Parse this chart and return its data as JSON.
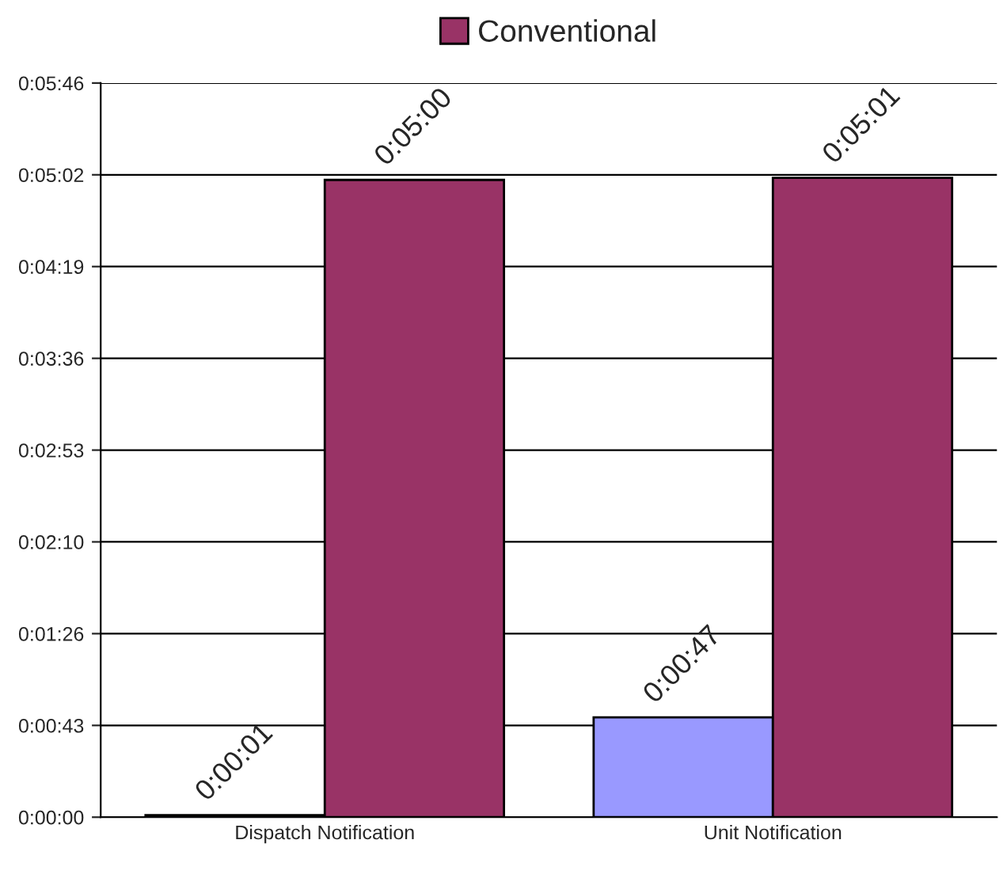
{
  "chart_data": {
    "type": "bar",
    "categories": [
      "Dispatch Notification",
      "Unit Notification"
    ],
    "series": [
      {
        "color": "#9999ff",
        "values": [
          1,
          47
        ],
        "value_labels": [
          "0:00:01",
          "0:00:47"
        ]
      },
      {
        "name": "Conventional",
        "color": "#993366",
        "values": [
          300,
          301
        ],
        "value_labels": [
          "0:05:00",
          "0:05:01"
        ]
      }
    ],
    "ylim": [
      0,
      345.6
    ],
    "yticks": [
      {
        "value": 0,
        "label": "0:00:00"
      },
      {
        "value": 43.2,
        "label": "0:00:43"
      },
      {
        "value": 86.4,
        "label": "0:01:26"
      },
      {
        "value": 129.6,
        "label": "0:02:10"
      },
      {
        "value": 172.8,
        "label": "0:02:53"
      },
      {
        "value": 216,
        "label": "0:03:36"
      },
      {
        "value": 259.2,
        "label": "0:04:19"
      },
      {
        "value": 302.4,
        "label": "0:05:02"
      },
      {
        "value": 345.6,
        "label": "0:05:46"
      }
    ],
    "grid": "y",
    "legend": "top"
  }
}
